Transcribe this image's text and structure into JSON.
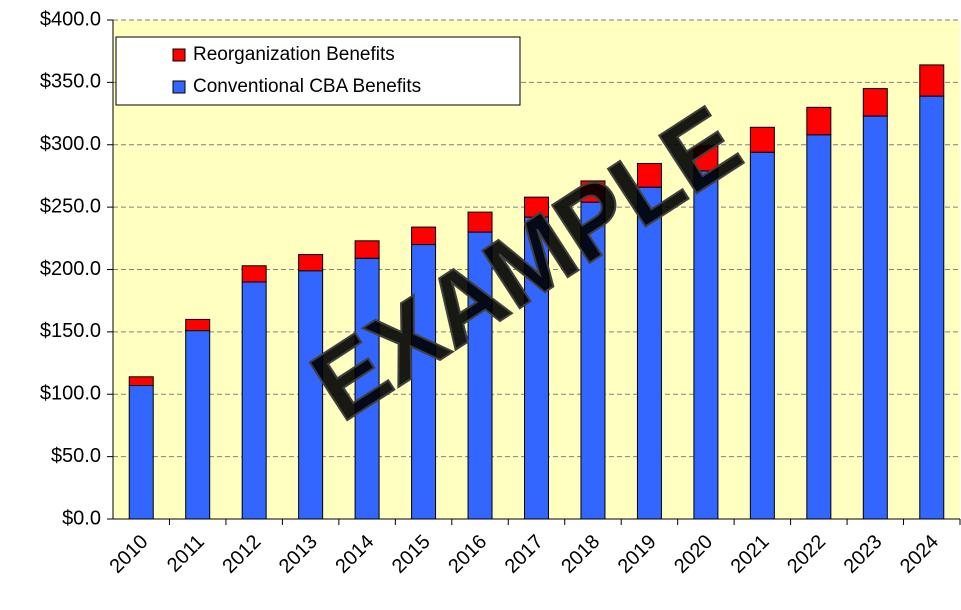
{
  "chart_data": {
    "type": "stacked_bar",
    "categories": [
      "2010",
      "2011",
      "2012",
      "2013",
      "2014",
      "2015",
      "2016",
      "2017",
      "2018",
      "2019",
      "2020",
      "2021",
      "2022",
      "2023",
      "2024"
    ],
    "series": [
      {
        "name": "Conventional CBA Benefits",
        "color": "#3366ff",
        "values": [
          107,
          151,
          190,
          199,
          209,
          220,
          230,
          242,
          254,
          266,
          279,
          294,
          308,
          323,
          339
        ]
      },
      {
        "name": "Reorganization Benefits",
        "color": "#ff0000",
        "values": [
          7,
          9,
          13,
          13,
          14,
          14,
          16,
          16,
          17,
          19,
          20,
          20,
          22,
          22,
          25
        ]
      }
    ],
    "ylim": [
      0,
      400
    ],
    "yticks": [
      {
        "value": 0,
        "label": "$0.0"
      },
      {
        "value": 50,
        "label": "$50.0"
      },
      {
        "value": 100,
        "label": "$100.0"
      },
      {
        "value": 150,
        "label": "$150.0"
      },
      {
        "value": 200,
        "label": "$200.0"
      },
      {
        "value": 250,
        "label": "$250.0"
      },
      {
        "value": 300,
        "label": "$300.0"
      },
      {
        "value": 350,
        "label": "$350.0"
      },
      {
        "value": 400,
        "label": "$400.0"
      }
    ],
    "grid": true,
    "legend": "upper left",
    "background": "#ffffc0",
    "annotation": "EXAMPLE"
  }
}
